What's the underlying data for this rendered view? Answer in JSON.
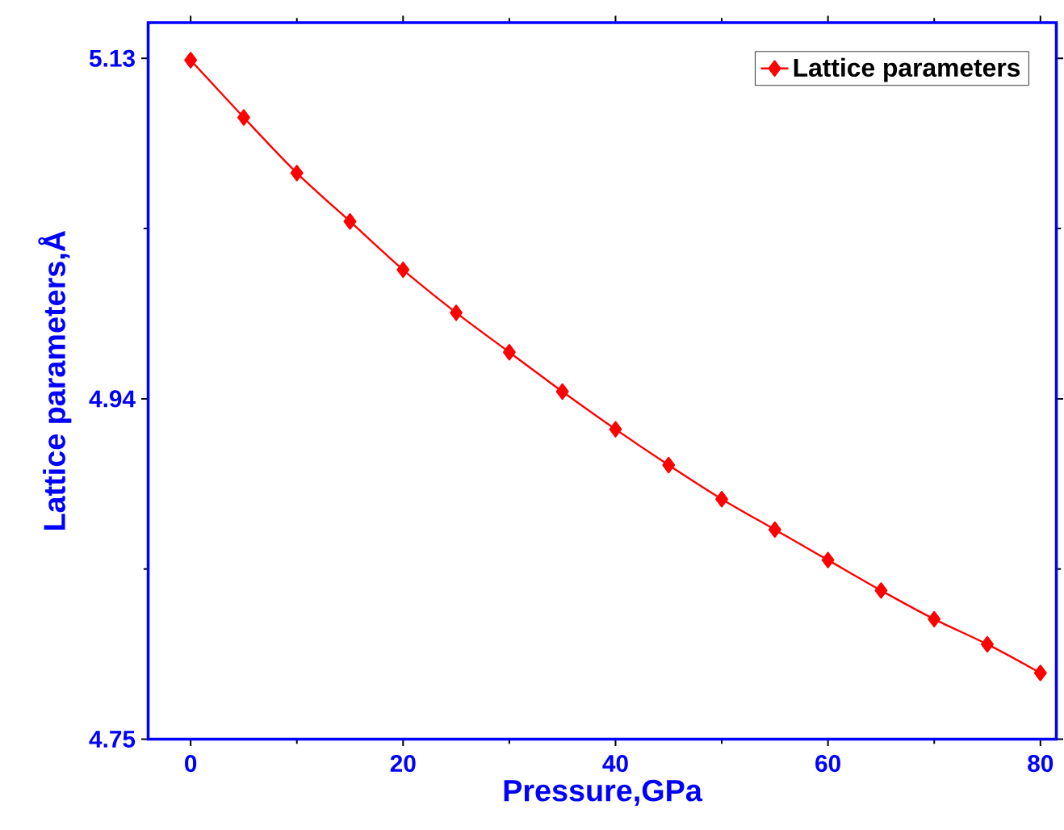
{
  "chart_data": {
    "type": "line",
    "xlabel": "Pressure,GPa",
    "ylabel": "Lattice parameters,Å",
    "x": [
      0,
      5,
      10,
      15,
      20,
      25,
      30,
      35,
      40,
      45,
      50,
      55,
      60,
      65,
      70,
      75,
      80
    ],
    "series": [
      {
        "name": "Lattice parameters",
        "color": "#ff0000",
        "values": [
          5.129,
          5.097,
          5.066,
          5.039,
          5.012,
          4.988,
          4.966,
          4.944,
          4.923,
          4.903,
          4.884,
          4.867,
          4.85,
          4.833,
          4.817,
          4.803,
          4.787
        ]
      }
    ],
    "xlim": [
      -4,
      81.5
    ],
    "ylim": [
      4.75,
      5.15
    ],
    "xticks": [
      0,
      20,
      40,
      60,
      80
    ],
    "yticks": [
      4.75,
      4.94,
      5.13
    ],
    "grid": false,
    "legend": "top right",
    "marker": "diamond",
    "line_style": "solid"
  }
}
